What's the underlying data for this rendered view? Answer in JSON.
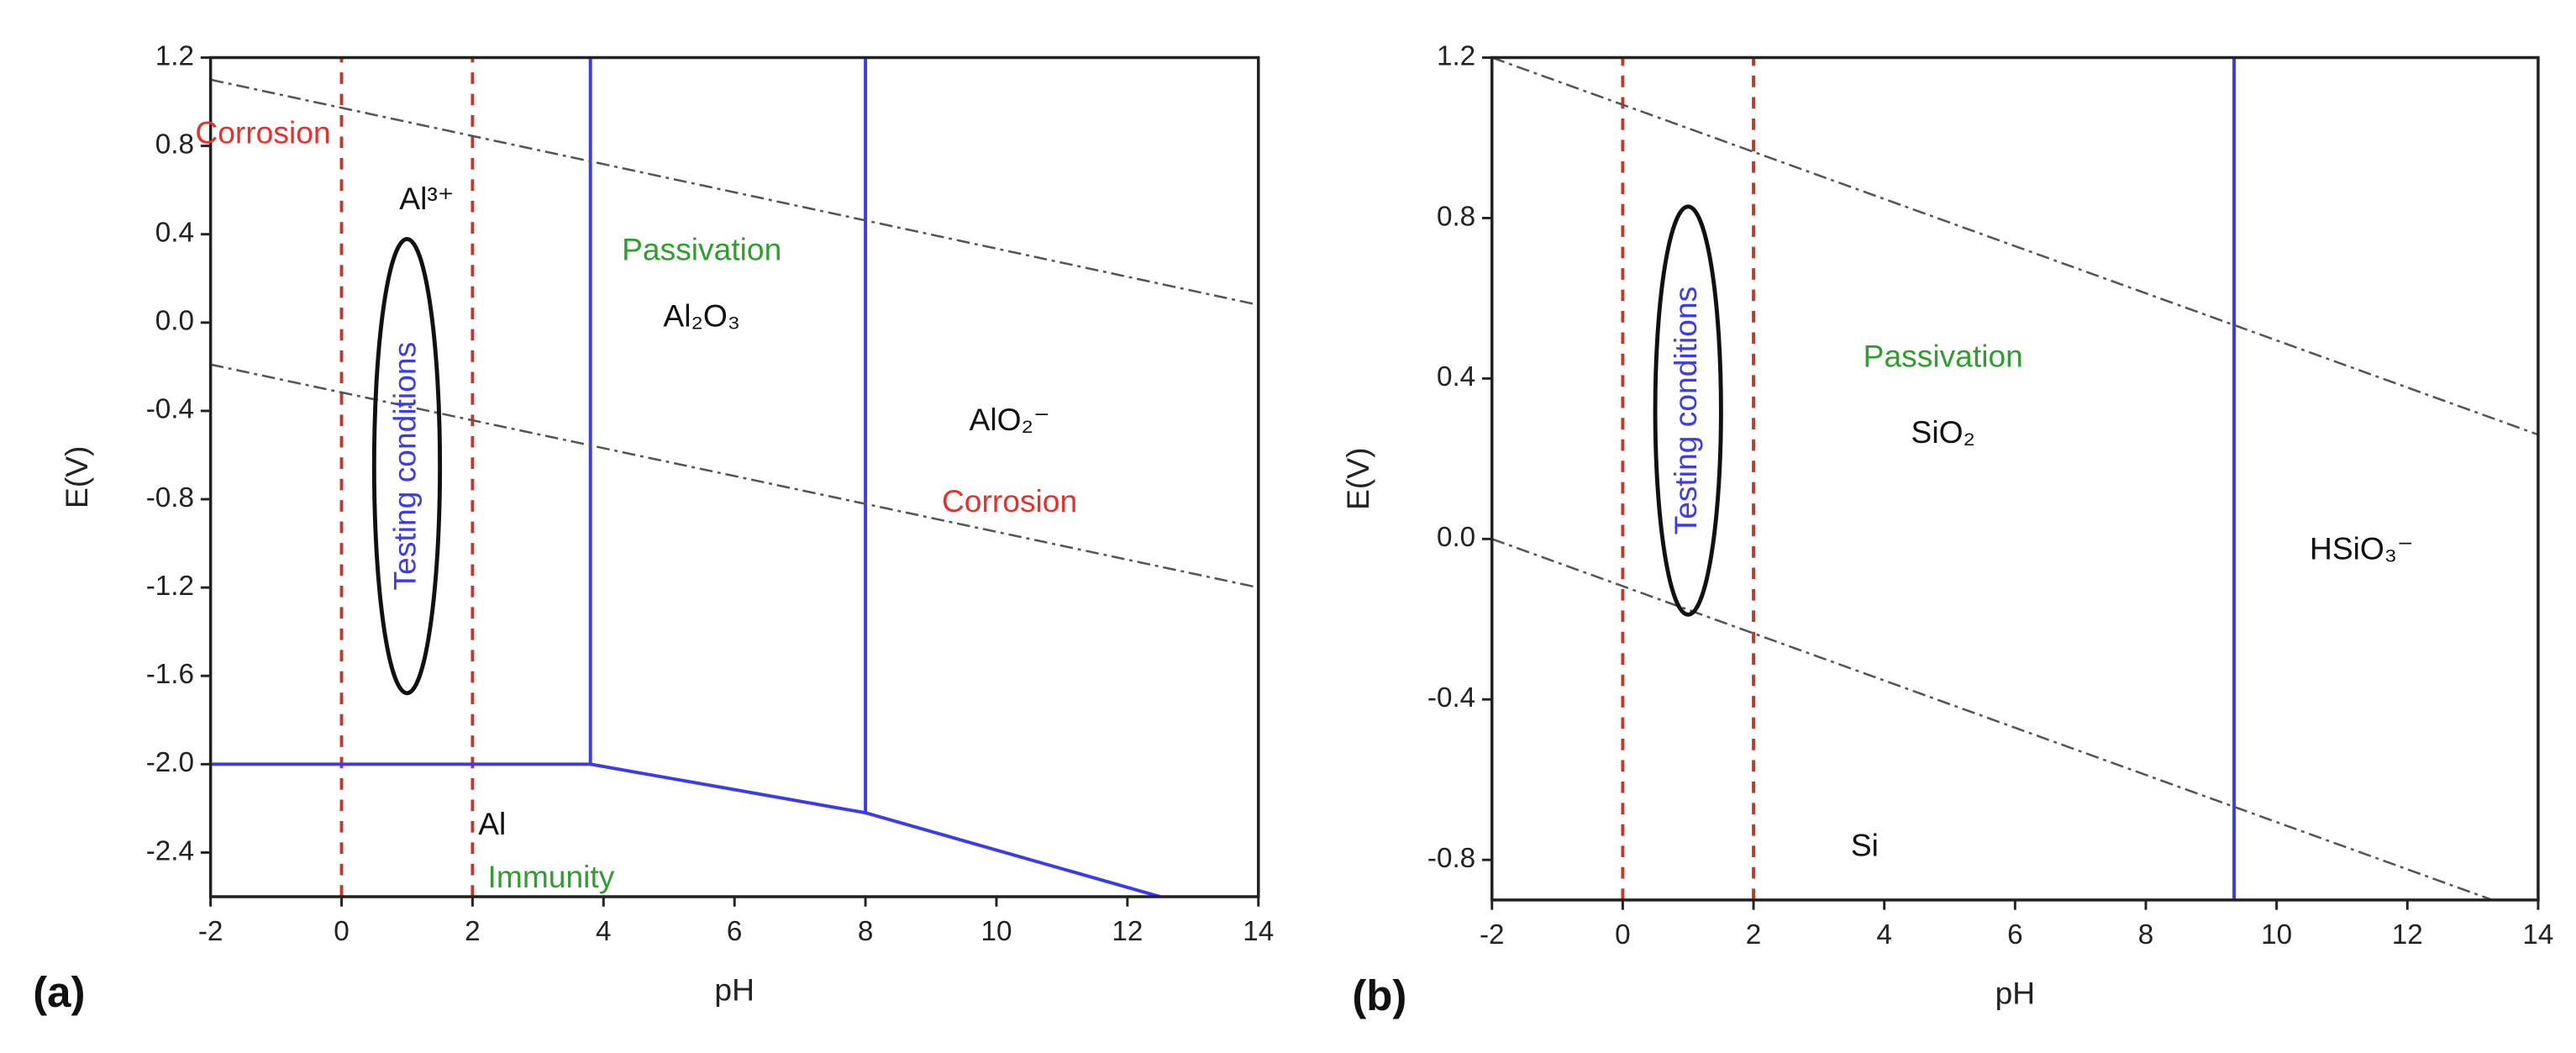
{
  "chart_data": [
    {
      "type": "line",
      "panel_label": "(a)",
      "x_label": "pH",
      "y_label": "E(V)",
      "xlim": [
        -2,
        14
      ],
      "ylim": [
        -2.6,
        1.2
      ],
      "xticks": [
        -2,
        0,
        2,
        4,
        6,
        8,
        10,
        12,
        14
      ],
      "yticks": [
        1.2,
        0.8,
        0.4,
        {
          "value": 0,
          "label": "0.0"
        },
        -0.4,
        -0.8,
        -1.2,
        -1.6,
        {
          "value": -2,
          "label": "-2.0"
        },
        -2.4
      ],
      "series": [
        {
          "color": "#c0392b",
          "style": "dashed",
          "x": [
            0,
            0
          ],
          "values": [
            -2.6,
            1.2
          ]
        },
        {
          "color": "#c0392b",
          "style": "dashed",
          "x": [
            2,
            2
          ],
          "values": [
            -2.6,
            1.2
          ]
        },
        {
          "color": "#3a3af0",
          "style": "solid",
          "x": [
            -2,
            3.8
          ],
          "values": [
            -2.0,
            -2.0
          ]
        },
        {
          "color": "#3a3af0",
          "style": "solid",
          "x": [
            3.8,
            3.8
          ],
          "values": [
            -2.0,
            1.2
          ]
        },
        {
          "color": "#3a3af0",
          "style": "solid",
          "x": [
            3.8,
            8,
            12.5
          ],
          "values": [
            -2.0,
            -2.22,
            -2.6
          ]
        },
        {
          "color": "#3a3af0",
          "style": "solid",
          "x": [
            8,
            8
          ],
          "values": [
            -2.22,
            1.2
          ]
        },
        {
          "color": "#555555",
          "style": "dashdot",
          "x": [
            -2,
            14
          ],
          "values": [
            1.1,
            0.08
          ]
        },
        {
          "color": "#555555",
          "style": "dashdot",
          "x": [
            -2,
            14
          ],
          "values": [
            -0.19,
            -1.2
          ]
        }
      ],
      "annotations": [
        {
          "text": "Corrosion",
          "color": "#e8302a"
        },
        {
          "text": "Al³⁺",
          "color": "#111111"
        },
        {
          "text": "Passivation",
          "color": "#2e9e2e"
        },
        {
          "text": "Al₂O₃",
          "color": "#111111"
        },
        {
          "text": "AlO₂⁻",
          "color": "#111111"
        },
        {
          "text": "Corrosion",
          "color": "#e8302a"
        },
        {
          "text": "Al",
          "color": "#111111"
        },
        {
          "text": "Immunity",
          "color": "#2e9e2e"
        },
        {
          "text": "Testing conditions",
          "color": "#3a3af0"
        }
      ]
    },
    {
      "type": "line",
      "panel_label": "(b)",
      "x_label": "pH",
      "y_label": "E(V)",
      "xlim": [
        -2,
        14
      ],
      "ylim": [
        -0.9,
        1.2
      ],
      "xticks": [
        -2,
        0,
        2,
        4,
        6,
        8,
        10,
        12,
        14
      ],
      "yticks": [
        1.2,
        0.8,
        0.4,
        {
          "value": 0,
          "label": "0.0"
        },
        -0.4,
        -0.8
      ],
      "series": [
        {
          "color": "#c0392b",
          "style": "dashed",
          "x": [
            0,
            0
          ],
          "values": [
            -0.9,
            1.2
          ]
        },
        {
          "color": "#c0392b",
          "style": "dashed",
          "x": [
            2,
            2
          ],
          "values": [
            -0.9,
            1.2
          ]
        },
        {
          "color": "#3a3af0",
          "style": "solid",
          "x": [
            9.35,
            9.35
          ],
          "values": [
            -0.9,
            1.2
          ]
        },
        {
          "color": "#555555",
          "style": "dashdot",
          "x": [
            -2,
            14
          ],
          "values": [
            1.2,
            0.26
          ]
        },
        {
          "color": "#555555",
          "style": "dashdot",
          "x": [
            -2,
            13.3
          ],
          "values": [
            0.0,
            -0.9
          ]
        }
      ],
      "annotations": [
        {
          "text": "Passivation",
          "color": "#2e9e2e"
        },
        {
          "text": "SiO₂",
          "color": "#111111"
        },
        {
          "text": "HSiO₃⁻",
          "color": "#111111"
        },
        {
          "text": "Si",
          "color": "#111111"
        },
        {
          "text": "Testing conditions",
          "color": "#3a3af0"
        }
      ]
    }
  ]
}
